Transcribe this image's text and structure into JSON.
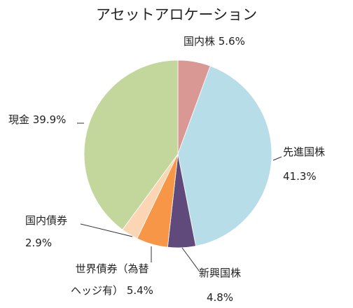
{
  "chart_data": {
    "type": "pie",
    "title": "アセットアロケーション",
    "start_angle_deg": 0,
    "direction": "clockwise",
    "slices": [
      {
        "label": "国内株",
        "value": 5.6,
        "label_lines": [
          "国内株 5.6%"
        ],
        "color": "#DA9894"
      },
      {
        "label": "先進国株",
        "value": 41.3,
        "label_lines": [
          "先進国株",
          "41.3%"
        ],
        "color": "#B7DDE8"
      },
      {
        "label": "新興国株",
        "value": 4.8,
        "label_lines": [
          "新興国株",
          "4.8%"
        ],
        "color": "#604A7B"
      },
      {
        "label": "世界債券（為替ヘッジ有）",
        "value": 5.4,
        "label_lines": [
          "世界債券（為替",
          "ヘッジ有） 5.4%"
        ],
        "color": "#F79646"
      },
      {
        "label": "国内債券",
        "value": 2.9,
        "label_lines": [
          "国内債券",
          "2.9%"
        ],
        "color": "#FCD5B5"
      },
      {
        "label": "現金",
        "value": 39.9,
        "label_lines": [
          "現金 39.9%"
        ],
        "color": "#C3D69B"
      }
    ]
  }
}
